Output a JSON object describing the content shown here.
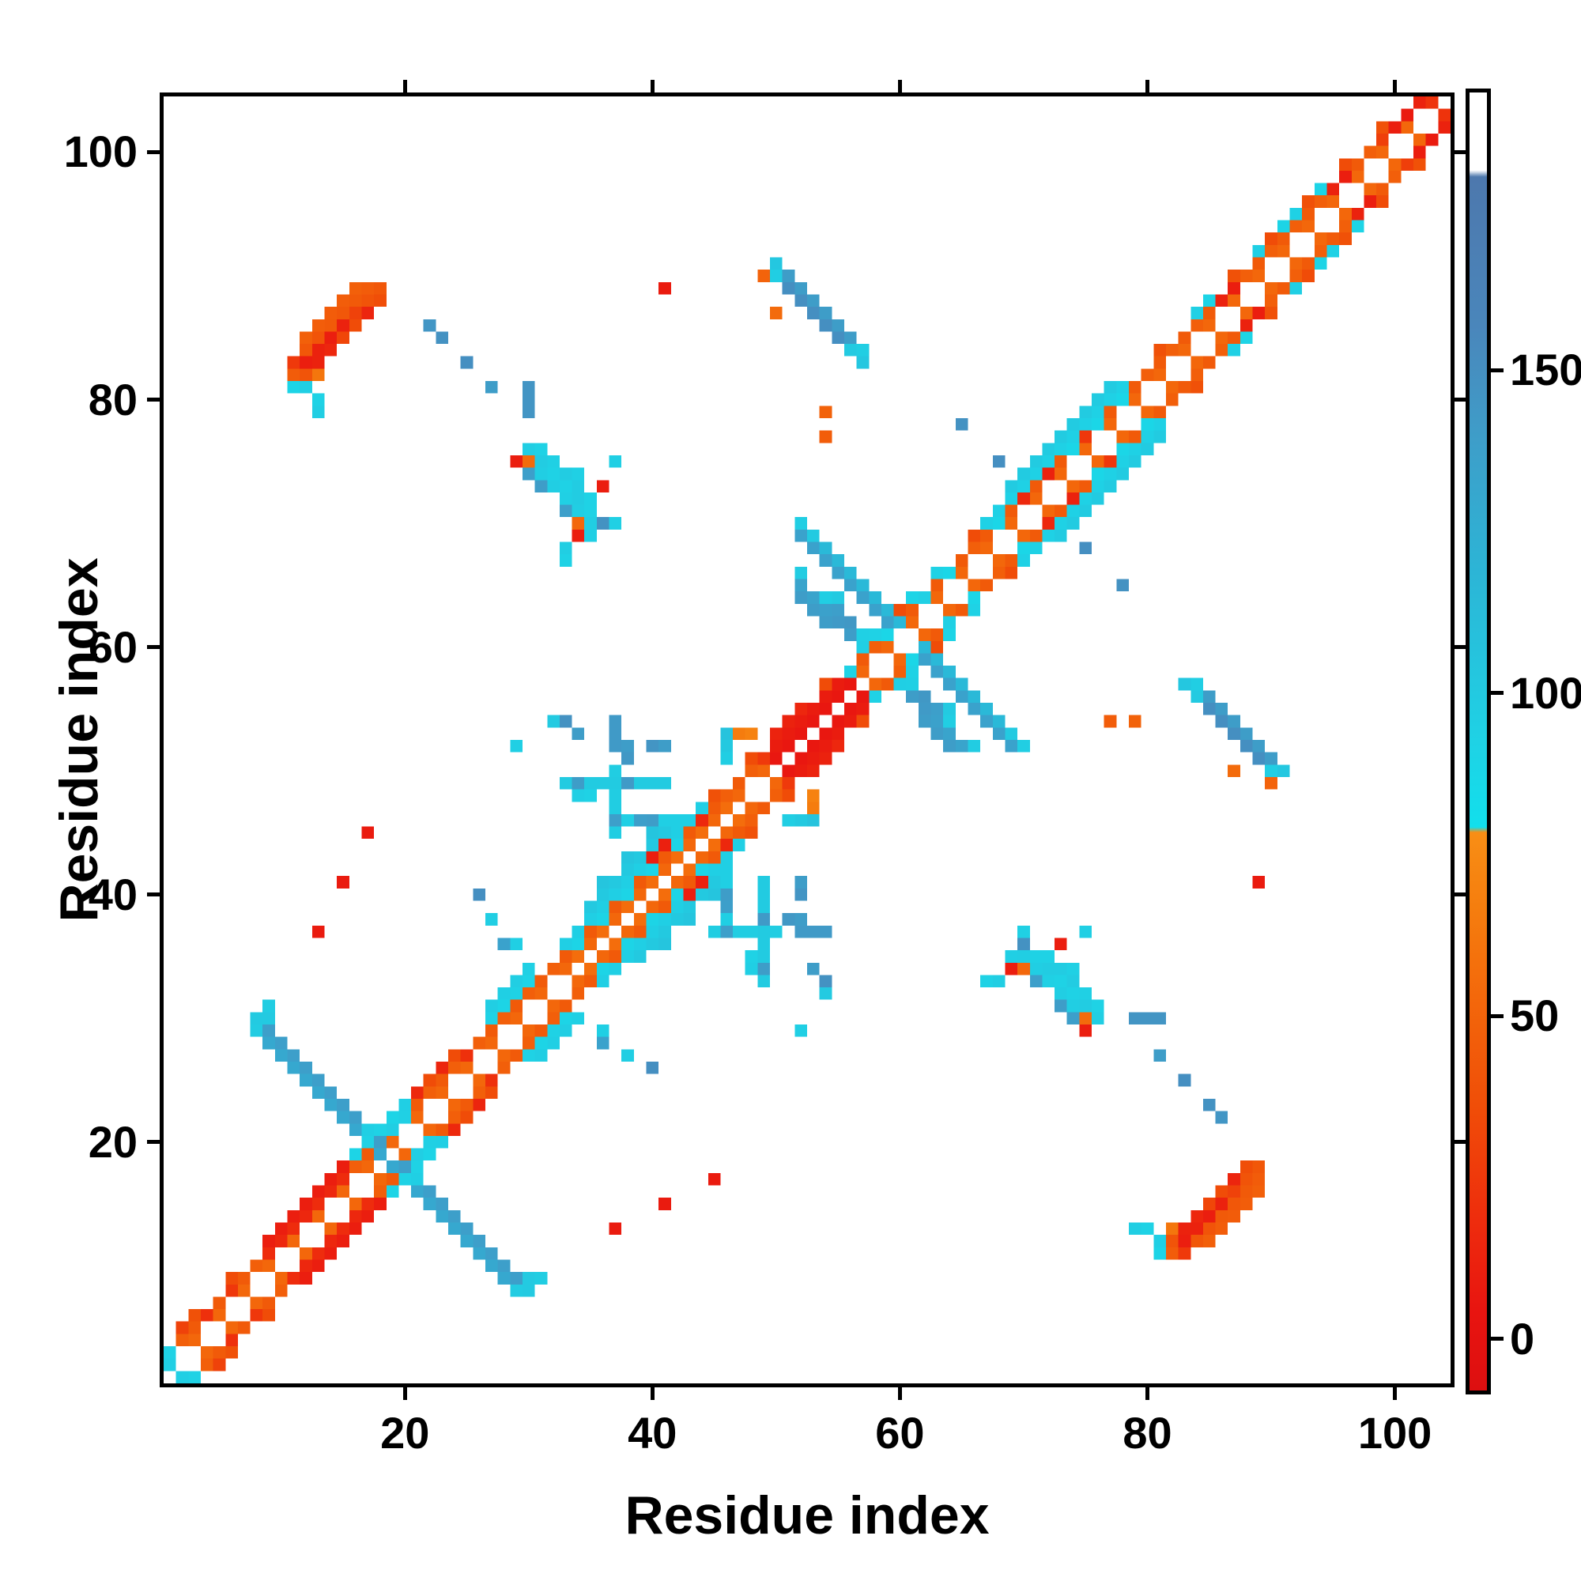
{
  "figure": {
    "background": "#ffffff"
  },
  "chart_data": {
    "type": "heatmap",
    "title": "",
    "xlabel": "Residue index",
    "ylabel": "Residue index",
    "x_ticks": [
      20,
      40,
      60,
      80,
      100
    ],
    "y_ticks": [
      20,
      40,
      60,
      80,
      100
    ],
    "n_residues": 104,
    "axis_range": [
      0.5,
      104.5
    ],
    "symmetric": true,
    "background_value": null,
    "diagonal_masked": true,
    "grid": false,
    "legend_position": "right-colorbar",
    "colorbar": {
      "ticks": [
        0,
        50,
        100,
        150
      ],
      "vmin": -8,
      "vmax": 193,
      "stops": [
        [
          0.0,
          "#dd0f10"
        ],
        [
          0.06,
          "#e81410"
        ],
        [
          0.13,
          "#ee2c0d"
        ],
        [
          0.22,
          "#f04e08"
        ],
        [
          0.3,
          "#f3670b"
        ],
        [
          0.37,
          "#f57d0e"
        ],
        [
          0.43,
          "#f88e15"
        ],
        [
          0.434,
          "#12dfec"
        ],
        [
          0.5,
          "#1fd2e5"
        ],
        [
          0.63,
          "#2cb5d6"
        ],
        [
          0.74,
          "#3f9cc8"
        ],
        [
          0.82,
          "#4a86bb"
        ],
        [
          0.935,
          "#4d78ad"
        ],
        [
          0.94,
          "#ffffff"
        ],
        [
          1.0,
          "#ffffff"
        ]
      ]
    },
    "runs": [
      [
        1,
        2,
        2,
        2,
        52,
        52
      ],
      [
        1,
        3,
        2,
        2,
        51,
        44
      ],
      [
        2,
        4,
        2,
        2,
        51,
        47
      ],
      [
        3,
        6,
        6,
        6,
        17,
        38
      ],
      [
        6,
        9,
        6,
        6,
        16,
        35
      ],
      [
        34,
        35,
        2,
        2,
        7,
        56
      ],
      [
        9,
        12,
        1,
        1,
        8,
        10
      ],
      [
        10,
        12,
        1,
        1,
        6,
        15
      ],
      [
        9,
        11,
        2,
        2,
        4,
        18
      ],
      [
        8,
        30,
        1,
        -1,
        11,
        138
      ],
      [
        8,
        29,
        1,
        -1,
        11,
        130
      ],
      [
        33,
        36,
        1,
        1,
        12,
        95
      ],
      [
        35,
        39,
        1,
        1,
        8,
        101
      ],
      [
        34,
        36,
        2,
        2,
        5,
        90
      ],
      [
        36,
        41,
        2,
        2,
        3,
        104
      ],
      [
        37,
        45,
        0,
        1,
        6,
        97
      ],
      [
        33,
        49,
        1,
        0,
        9,
        99
      ],
      [
        37,
        52,
        0,
        1,
        3,
        142
      ],
      [
        37,
        46,
        1,
        0,
        7,
        95
      ],
      [
        50,
        51,
        1,
        1,
        7,
        6
      ],
      [
        50,
        52,
        1,
        1,
        6,
        9
      ],
      [
        52,
        70,
        1,
        -1,
        9,
        115
      ],
      [
        52,
        69,
        1,
        -1,
        8,
        135
      ],
      [
        30,
        79,
        0,
        1,
        3,
        146
      ],
      [
        50,
        91,
        1,
        -1,
        8,
        140
      ],
      [
        50,
        90,
        1,
        -1,
        8,
        146
      ],
      [
        51,
        89,
        1,
        -1,
        5,
        150
      ],
      [
        67,
        70,
        1,
        1,
        12,
        93
      ],
      [
        69,
        73,
        1,
        1,
        9,
        99
      ],
      [
        68,
        70,
        2,
        2,
        6,
        88
      ]
    ],
    "cells": [
      [
        1,
        2,
        95
      ],
      [
        1,
        3,
        92
      ],
      [
        2,
        5,
        30
      ],
      [
        4,
        6,
        20
      ],
      [
        6,
        8,
        24
      ],
      [
        8,
        30,
        100
      ],
      [
        8,
        29,
        98
      ],
      [
        9,
        31,
        97
      ],
      [
        9,
        30,
        100
      ],
      [
        16,
        19,
        90
      ],
      [
        17,
        20,
        92
      ],
      [
        17,
        21,
        95
      ],
      [
        18,
        21,
        92
      ],
      [
        19,
        21,
        96
      ],
      [
        19,
        22,
        90
      ],
      [
        20,
        22,
        94
      ],
      [
        20,
        23,
        95
      ],
      [
        21,
        24,
        16
      ],
      [
        23,
        26,
        14
      ],
      [
        25,
        27,
        20
      ],
      [
        22,
        25,
        35
      ],
      [
        27,
        30,
        92
      ],
      [
        27,
        31,
        96
      ],
      [
        28,
        31,
        90
      ],
      [
        28,
        32,
        95
      ],
      [
        29,
        32,
        92
      ],
      [
        29,
        33,
        96
      ],
      [
        30,
        33,
        90
      ],
      [
        30,
        34,
        94
      ],
      [
        37,
        46,
        138
      ],
      [
        34,
        49,
        140
      ],
      [
        38,
        49,
        142
      ],
      [
        39,
        46,
        138
      ],
      [
        40,
        46,
        140
      ],
      [
        33,
        54,
        148
      ],
      [
        32,
        54,
        100
      ],
      [
        40,
        52,
        146
      ],
      [
        41,
        52,
        140
      ],
      [
        38,
        51,
        144
      ],
      [
        38,
        52,
        140
      ],
      [
        34,
        53,
        140
      ],
      [
        34,
        48,
        95
      ],
      [
        35,
        48,
        92
      ],
      [
        46,
        51,
        96
      ],
      [
        46,
        52,
        101
      ],
      [
        46,
        53,
        106
      ],
      [
        47,
        53,
        66
      ],
      [
        48,
        53,
        70
      ],
      [
        40,
        43,
        10
      ],
      [
        41,
        44,
        11
      ],
      [
        44,
        46,
        16
      ],
      [
        27,
        38,
        96
      ],
      [
        28,
        36,
        135
      ],
      [
        26,
        40,
        150
      ],
      [
        29,
        36,
        95
      ],
      [
        29,
        52,
        95
      ],
      [
        50,
        53,
        13
      ],
      [
        51,
        54,
        12
      ],
      [
        52,
        55,
        15
      ],
      [
        49,
        51,
        25
      ],
      [
        56,
        58,
        92
      ],
      [
        57,
        60,
        95
      ],
      [
        58,
        61,
        92
      ],
      [
        59,
        61,
        88
      ],
      [
        54,
        62,
        140
      ],
      [
        54,
        63,
        136
      ],
      [
        55,
        62,
        142
      ],
      [
        55,
        63,
        138
      ],
      [
        53,
        63,
        140
      ],
      [
        53,
        64,
        134
      ],
      [
        52,
        64,
        140
      ],
      [
        52,
        65,
        134
      ],
      [
        56,
        61,
        140
      ],
      [
        56,
        62,
        144
      ],
      [
        55,
        64,
        100
      ],
      [
        52,
        66,
        98
      ],
      [
        57,
        61,
        94
      ],
      [
        54,
        64,
        96
      ],
      [
        52,
        70,
        96
      ],
      [
        53,
        69,
        100
      ],
      [
        61,
        64,
        90
      ],
      [
        62,
        64,
        94
      ],
      [
        63,
        66,
        92
      ],
      [
        64,
        66,
        88
      ],
      [
        54,
        77,
        46
      ],
      [
        54,
        79,
        49
      ],
      [
        65,
        78,
        148
      ],
      [
        68,
        75,
        150
      ],
      [
        23,
        85,
        148
      ],
      [
        25,
        83,
        150
      ],
      [
        13,
        37,
        8
      ],
      [
        15,
        41,
        8
      ],
      [
        17,
        45,
        8
      ],
      [
        41,
        89,
        8
      ],
      [
        29,
        75,
        10
      ],
      [
        30,
        75,
        55
      ],
      [
        34,
        69,
        10
      ],
      [
        34,
        70,
        52
      ],
      [
        36,
        73,
        10
      ],
      [
        30,
        76,
        96
      ],
      [
        31,
        76,
        92
      ],
      [
        31,
        75,
        98
      ],
      [
        32,
        75,
        94
      ],
      [
        31,
        74,
        96
      ],
      [
        32,
        74,
        92
      ],
      [
        33,
        74,
        98
      ],
      [
        34,
        74,
        94
      ],
      [
        30,
        74,
        138
      ],
      [
        32,
        73,
        96
      ],
      [
        33,
        73,
        92
      ],
      [
        34,
        73,
        98
      ],
      [
        31,
        73,
        140
      ],
      [
        33,
        72,
        94
      ],
      [
        34,
        72,
        98
      ],
      [
        35,
        72,
        92
      ],
      [
        34,
        71,
        96
      ],
      [
        35,
        71,
        92
      ],
      [
        33,
        71,
        138
      ],
      [
        35,
        70,
        96
      ],
      [
        36,
        70,
        148
      ],
      [
        37,
        70,
        94
      ],
      [
        33,
        68,
        96
      ],
      [
        33,
        67,
        92
      ],
      [
        37,
        75,
        95
      ],
      [
        35,
        69,
        95
      ],
      [
        27,
        81,
        140
      ],
      [
        50,
        91,
        102
      ],
      [
        50,
        90,
        96
      ],
      [
        56,
        84,
        100
      ],
      [
        57,
        84,
        96
      ],
      [
        57,
        83,
        102
      ],
      [
        49,
        90,
        50
      ],
      [
        50,
        87,
        55
      ],
      [
        16,
        89,
        48
      ],
      [
        17,
        89,
        45
      ],
      [
        18,
        89,
        42
      ],
      [
        15,
        88,
        46
      ],
      [
        16,
        88,
        44
      ],
      [
        17,
        88,
        40
      ],
      [
        18,
        88,
        36
      ],
      [
        14,
        87,
        45
      ],
      [
        15,
        87,
        42
      ],
      [
        16,
        87,
        30
      ],
      [
        17,
        87,
        14
      ],
      [
        13,
        86,
        46
      ],
      [
        14,
        86,
        44
      ],
      [
        15,
        86,
        12
      ],
      [
        16,
        86,
        35
      ],
      [
        12,
        85,
        48
      ],
      [
        13,
        85,
        40
      ],
      [
        14,
        85,
        10
      ],
      [
        15,
        85,
        32
      ],
      [
        12,
        84,
        42
      ],
      [
        13,
        84,
        12
      ],
      [
        14,
        84,
        15
      ],
      [
        11,
        83,
        25
      ],
      [
        12,
        83,
        10
      ],
      [
        13,
        83,
        12
      ],
      [
        11,
        82,
        45
      ],
      [
        12,
        82,
        40
      ],
      [
        13,
        82,
        62
      ],
      [
        11,
        81,
        90
      ],
      [
        12,
        81,
        95
      ],
      [
        13,
        80,
        92
      ],
      [
        13,
        79,
        96
      ],
      [
        22,
        86,
        145
      ],
      [
        70,
        72,
        16
      ],
      [
        72,
        74,
        12
      ],
      [
        75,
        77,
        24
      ],
      [
        84,
        87,
        94
      ],
      [
        85,
        88,
        90
      ],
      [
        86,
        88,
        12
      ],
      [
        87,
        89,
        10
      ],
      [
        89,
        92,
        95
      ],
      [
        91,
        94,
        90
      ],
      [
        92,
        95,
        93
      ],
      [
        94,
        97,
        90
      ],
      [
        95,
        97,
        12
      ],
      [
        96,
        98,
        10
      ],
      [
        99,
        101,
        28
      ],
      [
        100,
        102,
        10
      ],
      [
        101,
        103,
        8
      ],
      [
        102,
        104,
        12
      ],
      [
        103,
        104,
        22
      ]
    ]
  }
}
